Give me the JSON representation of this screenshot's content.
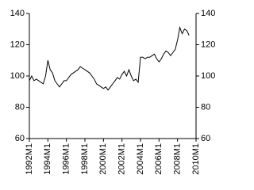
{
  "chart_data": {
    "type": "line",
    "x": [
      "1992M1",
      "1992M4",
      "1992M7",
      "1992M10",
      "1993M1",
      "1993M4",
      "1993M7",
      "1993M10",
      "1994M1",
      "1994M4",
      "1994M7",
      "1994M10",
      "1995M1",
      "1995M4",
      "1995M7",
      "1995M10",
      "1996M1",
      "1996M4",
      "1996M7",
      "1996M10",
      "1997M1",
      "1997M4",
      "1997M7",
      "1997M10",
      "1998M1",
      "1998M4",
      "1998M7",
      "1998M10",
      "1999M1",
      "1999M4",
      "1999M7",
      "1999M10",
      "2000M1",
      "2000M4",
      "2000M7",
      "2000M10",
      "2001M1",
      "2001M4",
      "2001M7",
      "2001M10",
      "2002M1",
      "2002M4",
      "2002M7",
      "2002M10",
      "2003M1",
      "2003M4",
      "2003M7",
      "2003M10",
      "2004M1",
      "2004M4",
      "2004M7",
      "2004M10",
      "2005M1",
      "2005M4",
      "2005M7",
      "2005M10",
      "2006M1",
      "2006M4",
      "2006M7",
      "2006M10",
      "2007M1",
      "2007M4",
      "2007M7",
      "2007M10",
      "2008M1",
      "2008M4",
      "2008M7",
      "2008M10",
      "2009M1",
      "2009M4"
    ],
    "values": [
      97,
      100,
      97,
      98,
      97,
      96,
      95,
      100,
      110,
      104,
      102,
      97,
      95,
      93,
      95,
      97,
      97,
      99,
      101,
      102,
      103,
      104,
      106,
      105,
      104,
      103,
      102,
      100,
      98,
      95,
      94,
      93,
      92,
      93,
      91,
      93,
      95,
      97,
      99,
      98,
      101,
      103,
      100,
      104,
      100,
      97,
      98,
      96,
      112,
      112,
      111,
      112,
      112,
      113,
      114,
      111,
      109,
      111,
      114,
      116,
      115,
      113,
      115,
      117,
      123,
      131,
      127,
      130,
      129,
      126
    ],
    "color": "#000000",
    "xlim": [
      "1992M1",
      "2010M1"
    ],
    "xticks": [
      "1992M1",
      "1994M1",
      "1996M1",
      "1998M1",
      "2000M1",
      "2002M1",
      "2004M1",
      "2006M1",
      "2008M1",
      "2010M1"
    ],
    "ylim": [
      60,
      140
    ],
    "yticks": [
      60,
      80,
      100,
      120,
      140
    ],
    "y2lim": [
      60,
      140
    ],
    "y2ticks": [
      60,
      80,
      100,
      120,
      140
    ]
  }
}
